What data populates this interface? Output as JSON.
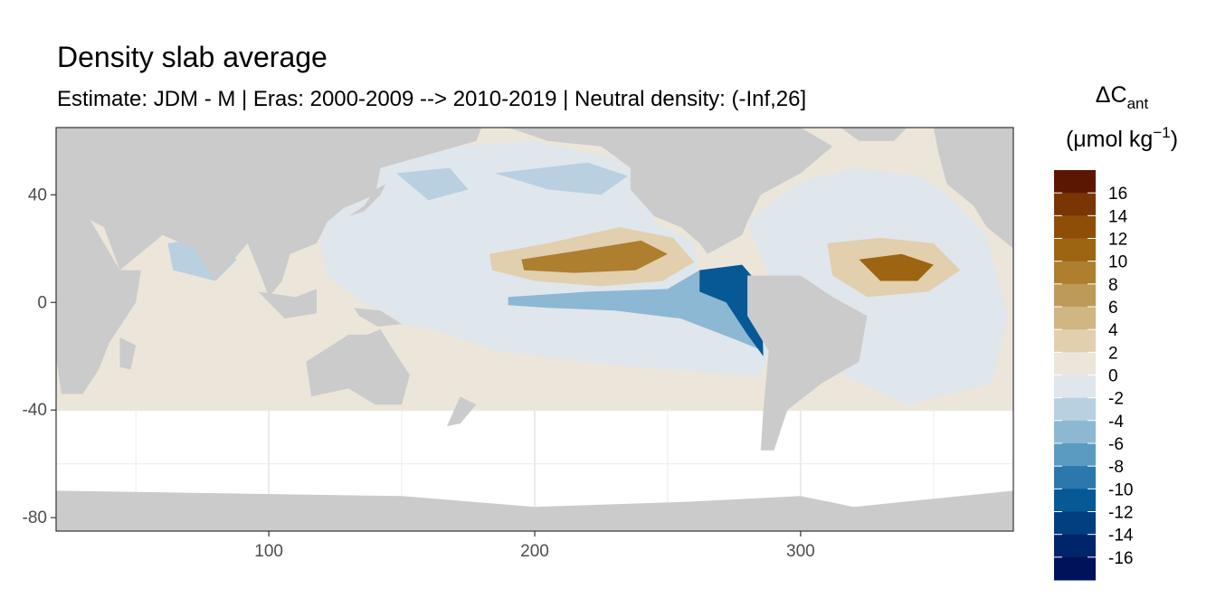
{
  "chart_data": {
    "type": "heatmap",
    "title": "Density slab average",
    "subtitle": "Estimate: JDM - M | Eras: 2000-2009 --> 2010-2019 | Neutral density: (-Inf,26]",
    "xlabel": "",
    "ylabel": "",
    "xlim": [
      20,
      380
    ],
    "ylim": [
      -85,
      65
    ],
    "x_ticks": [
      100,
      200,
      300
    ],
    "y_ticks": [
      40,
      0,
      -40,
      -80
    ],
    "x_tick_labels": [
      "100",
      "200",
      "300"
    ],
    "y_tick_labels": [
      "40",
      "0",
      "-40",
      "-80"
    ],
    "grid": true,
    "legend": {
      "position": "right",
      "title_main": "ΔC",
      "title_sub": "ant",
      "title_unit": "(μmol kg",
      "title_sup": "−1",
      "title_close": ")",
      "labels": [
        "16",
        "14",
        "12",
        "10",
        "8",
        "6",
        "4",
        "2",
        "0",
        "-2",
        "-4",
        "-6",
        "-8",
        "-10",
        "-12",
        "-14",
        "-16"
      ],
      "colors": [
        "#5c1703",
        "#7a3505",
        "#8f4e08",
        "#9d6412",
        "#ad7f2e",
        "#bd9a57",
        "#cfb683",
        "#e1cfae",
        "#ece6da",
        "#dfe6ec",
        "#b8d0e0",
        "#8cb8d3",
        "#5b9bc2",
        "#2c77ab",
        "#075996",
        "#023f80",
        "#00256b",
        "#001259"
      ]
    },
    "colors": {
      "land": "#cbcbcb",
      "panel_border": "#333333",
      "gridline": "#ebebeb"
    },
    "features": [
      {
        "name": "east-equatorial-pacific-minimum",
        "lon": 280,
        "lat": -5,
        "value": -12
      },
      {
        "name": "north-subtropical-pacific-maximum",
        "lon": 225,
        "lat": 18,
        "value": 10
      },
      {
        "name": "north-atlantic-subtropical-maximum",
        "lon": 335,
        "lat": 12,
        "value": 12
      },
      {
        "name": "equatorial-pacific-band",
        "lon": 240,
        "lat": -3,
        "value": -6
      }
    ]
  }
}
